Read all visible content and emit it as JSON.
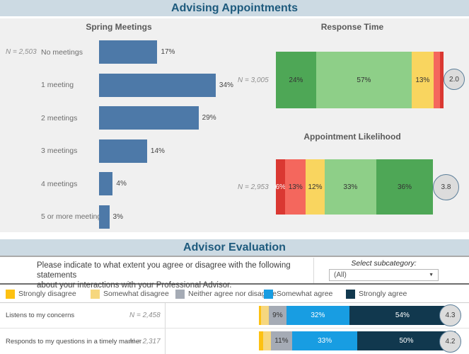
{
  "header": {
    "title": "Advising Appointments"
  },
  "evaluation_chrome": {
    "title": "Advisor Evaluation",
    "question_line1": "Please indicate to what extent you agree or disagree with the following statements",
    "question_line2": "about your interactions with your Professional Advisor.",
    "subcategory_label": "Select subcategory:",
    "subcategory_value": "(All)",
    "dropdown_caret": "▼"
  },
  "colors": {
    "banner_bg": "#ccdae3",
    "banner_text": "#1d5a7d",
    "panel_bg": "#f0f0f0",
    "bar_blue": "#4d79a8",
    "dark_green": "#4ea756",
    "light_green": "#8ecf88",
    "yellow": "#f9d55f",
    "salmon": "#f4675d",
    "red": "#da3832",
    "gold": "#fdc112",
    "pale_yellow": "#f6d77e",
    "neutral_gray": "#a5abb5",
    "bright_blue": "#189de2",
    "navy": "#11384e",
    "circle_fill": "#dcdcdc",
    "circle_border": "#5b7e99"
  },
  "chart_data": [
    {
      "id": "spring_meetings",
      "type": "bar",
      "orientation": "horizontal",
      "title": "Spring Meetings",
      "sample_label": "N = 2,503",
      "categories": [
        "No meetings",
        "1 meeting",
        "2 meetings",
        "3 meetings",
        "4 meetings",
        "5 or more meetings"
      ],
      "values": [
        17,
        34,
        29,
        14,
        4,
        3
      ],
      "value_labels": [
        "17%",
        "34%",
        "29%",
        "14%",
        "4%",
        "3%"
      ],
      "bar_color": "#4d79a8",
      "xlim": [
        0,
        40
      ],
      "grid": false
    },
    {
      "id": "response_time",
      "type": "bar",
      "subtype": "stacked_horizontal",
      "title": "Response Time",
      "sample_label": "N = 3,005",
      "avg_score": "2.0",
      "segments": [
        {
          "pct": 24,
          "label": "24%",
          "color": "#4ea756",
          "text_color": "#333333"
        },
        {
          "pct": 57,
          "label": "57%",
          "color": "#8ecf88",
          "text_color": "#333333"
        },
        {
          "pct": 13,
          "label": "13%",
          "color": "#f9d55f",
          "text_color": "#333333"
        },
        {
          "pct": 4,
          "label": "",
          "color": "#f4675d",
          "text_color": "#333333"
        },
        {
          "pct": 2,
          "label": "",
          "color": "#da3832",
          "text_color": "#ffffff"
        }
      ]
    },
    {
      "id": "appointment_likelihood",
      "type": "bar",
      "subtype": "stacked_horizontal",
      "title": "Appointment Likelihood",
      "sample_label": "N = 2,953",
      "avg_score": "3.8",
      "segments": [
        {
          "pct": 6,
          "label": "6%",
          "color": "#da3832",
          "text_color": "#ffffff"
        },
        {
          "pct": 13,
          "label": "13%",
          "color": "#f4675d",
          "text_color": "#333333"
        },
        {
          "pct": 12,
          "label": "12%",
          "color": "#f9d55f",
          "text_color": "#333333"
        },
        {
          "pct": 33,
          "label": "33%",
          "color": "#8ecf88",
          "text_color": "#333333"
        },
        {
          "pct": 36,
          "label": "36%",
          "color": "#4ea756",
          "text_color": "#333333"
        }
      ]
    },
    {
      "id": "advisor_evaluation",
      "type": "bar",
      "subtype": "stacked_horizontal_rows",
      "title": "Advisor Evaluation",
      "legend": [
        {
          "label": "Strongly disagree",
          "color": "#fdc112"
        },
        {
          "label": "Somewhat disagree",
          "color": "#f6d77e"
        },
        {
          "label": "Neither agree nor disagree",
          "color": "#a5abb5"
        },
        {
          "label": "Somewhat agree",
          "color": "#189de2"
        },
        {
          "label": "Strongly agree",
          "color": "#11384e"
        }
      ],
      "rows": [
        {
          "label": "Listens to my concerns",
          "sample_label": "N = 2,458",
          "avg_score": "4.3",
          "segments": [
            {
              "pct": 1,
              "label": "",
              "color": "#fdc112",
              "text_color": "#333333"
            },
            {
              "pct": 4,
              "label": "",
              "color": "#f6d77e",
              "text_color": "#333333"
            },
            {
              "pct": 9,
              "label": "9%",
              "color": "#a5abb5",
              "text_color": "#333333"
            },
            {
              "pct": 32,
              "label": "32%",
              "color": "#189de2",
              "text_color": "#ffffff"
            },
            {
              "pct": 54,
              "label": "54%",
              "color": "#11384e",
              "text_color": "#ffffff"
            }
          ]
        },
        {
          "label": "Responds to my questions in a timely manner",
          "sample_label": "N = 2,317",
          "avg_score": "4.2",
          "segments": [
            {
              "pct": 2,
              "label": "",
              "color": "#fdc112",
              "text_color": "#333333"
            },
            {
              "pct": 4,
              "label": "",
              "color": "#f6d77e",
              "text_color": "#333333"
            },
            {
              "pct": 11,
              "label": "11%",
              "color": "#a5abb5",
              "text_color": "#333333"
            },
            {
              "pct": 33,
              "label": "33%",
              "color": "#189de2",
              "text_color": "#ffffff"
            },
            {
              "pct": 50,
              "label": "50%",
              "color": "#11384e",
              "text_color": "#ffffff"
            }
          ]
        }
      ]
    }
  ]
}
